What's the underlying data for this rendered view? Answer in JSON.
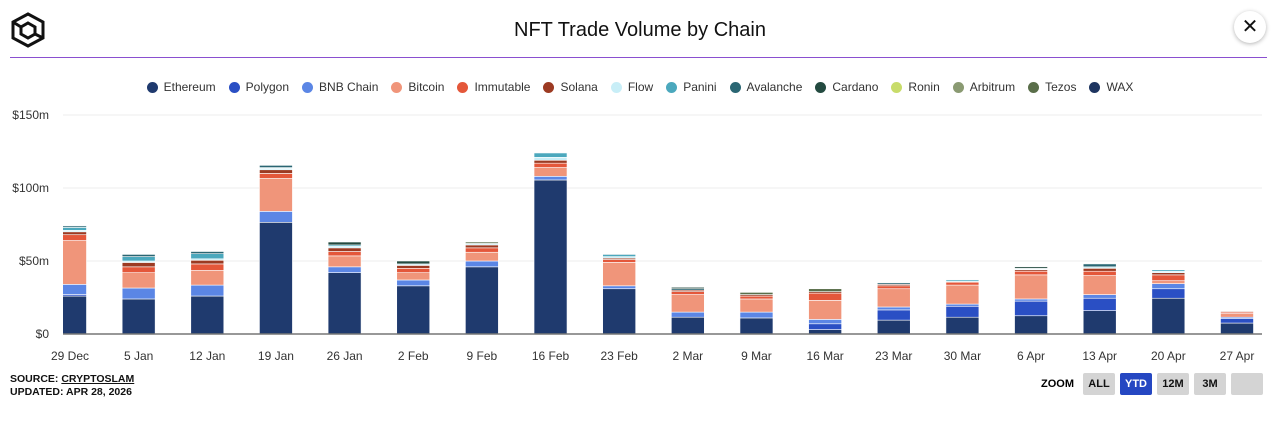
{
  "header": {
    "title": "NFT Trade Volume by Chain",
    "close_icon": "close-icon",
    "logo_icon": "cube-logo-icon"
  },
  "chart_data": {
    "type": "bar",
    "stacked": true,
    "title": "NFT Trade Volume by Chain",
    "xlabel": "",
    "ylabel": "",
    "ylim": [
      0,
      150
    ],
    "y_ticks": [
      "$0",
      "$50m",
      "$100m",
      "$150m"
    ],
    "y_tick_values": [
      0,
      50,
      100,
      150
    ],
    "grid": true,
    "legend_position": "top",
    "categories": [
      "29 Dec",
      "5 Jan",
      "12 Jan",
      "19 Jan",
      "26 Jan",
      "2 Feb",
      "9 Feb",
      "16 Feb",
      "23 Feb",
      "2 Mar",
      "9 Mar",
      "16 Mar",
      "23 Mar",
      "30 Mar",
      "6 Apr",
      "13 Apr",
      "20 Apr",
      "27 Apr"
    ],
    "series": [
      {
        "name": "Ethereum",
        "color": "#1f3a6e",
        "values": [
          26,
          24,
          26,
          76.5,
          42,
          33,
          46,
          105.5,
          31,
          11.5,
          11,
          3,
          9.5,
          11.5,
          12.5,
          16,
          24.5,
          7.5
        ]
      },
      {
        "name": "Polygon",
        "color": "#2a4fc4",
        "values": [
          1,
          0,
          0,
          0,
          0,
          0,
          0,
          0,
          0,
          0,
          0,
          4,
          7,
          7.5,
          10,
          8.5,
          6.5,
          3
        ]
      },
      {
        "name": "BNB Chain",
        "color": "#5b86e5",
        "values": [
          7,
          7.5,
          7.5,
          7.5,
          4,
          4,
          4,
          2.5,
          2,
          3.5,
          4,
          3,
          2,
          1.5,
          1.5,
          2.5,
          3.5,
          1
        ]
      },
      {
        "name": "Bitcoin",
        "color": "#f0957a",
        "values": [
          30,
          10.5,
          10,
          22.5,
          7.5,
          5,
          6,
          6,
          16,
          12,
          9,
          13,
          12.5,
          13,
          16.5,
          13,
          2,
          2.5
        ]
      },
      {
        "name": "Immutable",
        "color": "#e4573a",
        "values": [
          4,
          4,
          4.5,
          3.5,
          3,
          3,
          3,
          3,
          2,
          2,
          2,
          5,
          2,
          2,
          2.5,
          3,
          4,
          1
        ]
      },
      {
        "name": "Solana",
        "color": "#9c3a22",
        "values": [
          2,
          3,
          2.5,
          2.5,
          2.5,
          2,
          2,
          2,
          1,
          1,
          1,
          1,
          1,
          0,
          1,
          2,
          1.5,
          0.5
        ]
      },
      {
        "name": "Flow",
        "color": "#c8eef7",
        "values": [
          1,
          1,
          1,
          1,
          1,
          1,
          1,
          2,
          1,
          0,
          0,
          0,
          0,
          0.5,
          0.5,
          1,
          1,
          0
        ]
      },
      {
        "name": "Panini",
        "color": "#4ba8bd",
        "values": [
          2,
          3,
          3.5,
          0.5,
          1,
          0,
          0,
          3,
          1.5,
          0,
          0,
          0,
          0,
          1,
          0,
          0,
          1,
          0
        ]
      },
      {
        "name": "Avalanche",
        "color": "#2a6673",
        "values": [
          1,
          1.5,
          1.5,
          1.5,
          0,
          0,
          0,
          0,
          0.5,
          1,
          0,
          0,
          1,
          0,
          0.5,
          2,
          0,
          0
        ]
      },
      {
        "name": "Cardano",
        "color": "#234a40",
        "values": [
          0,
          0,
          0,
          0,
          2,
          2,
          0,
          0,
          0,
          1,
          0,
          0,
          0,
          0,
          1,
          0,
          0,
          0
        ]
      },
      {
        "name": "Ronin",
        "color": "#c8dc6a",
        "values": [
          0,
          0,
          0,
          0,
          0,
          0,
          0,
          0,
          0,
          0,
          0,
          0,
          0,
          0,
          0,
          0,
          0,
          0
        ]
      },
      {
        "name": "Arbitrum",
        "color": "#8a9a72",
        "values": [
          0,
          0,
          0,
          0,
          0,
          0,
          0,
          0,
          0,
          0,
          0,
          0,
          0,
          0,
          0,
          0,
          0,
          0
        ]
      },
      {
        "name": "Tezos",
        "color": "#5a6e4a",
        "values": [
          0,
          0,
          0,
          0,
          0,
          0,
          1,
          0,
          0,
          0,
          1.5,
          2,
          0,
          0,
          0,
          0,
          0,
          0
        ]
      },
      {
        "name": "WAX",
        "color": "#1e3560",
        "values": [
          0,
          0,
          0,
          0,
          0,
          0,
          0,
          0,
          0,
          0,
          0,
          0,
          0,
          0,
          0,
          0,
          0,
          0
        ]
      }
    ]
  },
  "footer": {
    "source_label": "SOURCE:",
    "source_link": "CRYPTOSLAM",
    "updated": "UPDATED: APR 28, 2026"
  },
  "zoom": {
    "label": "ZOOM",
    "buttons": [
      "ALL",
      "YTD",
      "12M",
      "3M",
      ""
    ],
    "active": "YTD"
  }
}
